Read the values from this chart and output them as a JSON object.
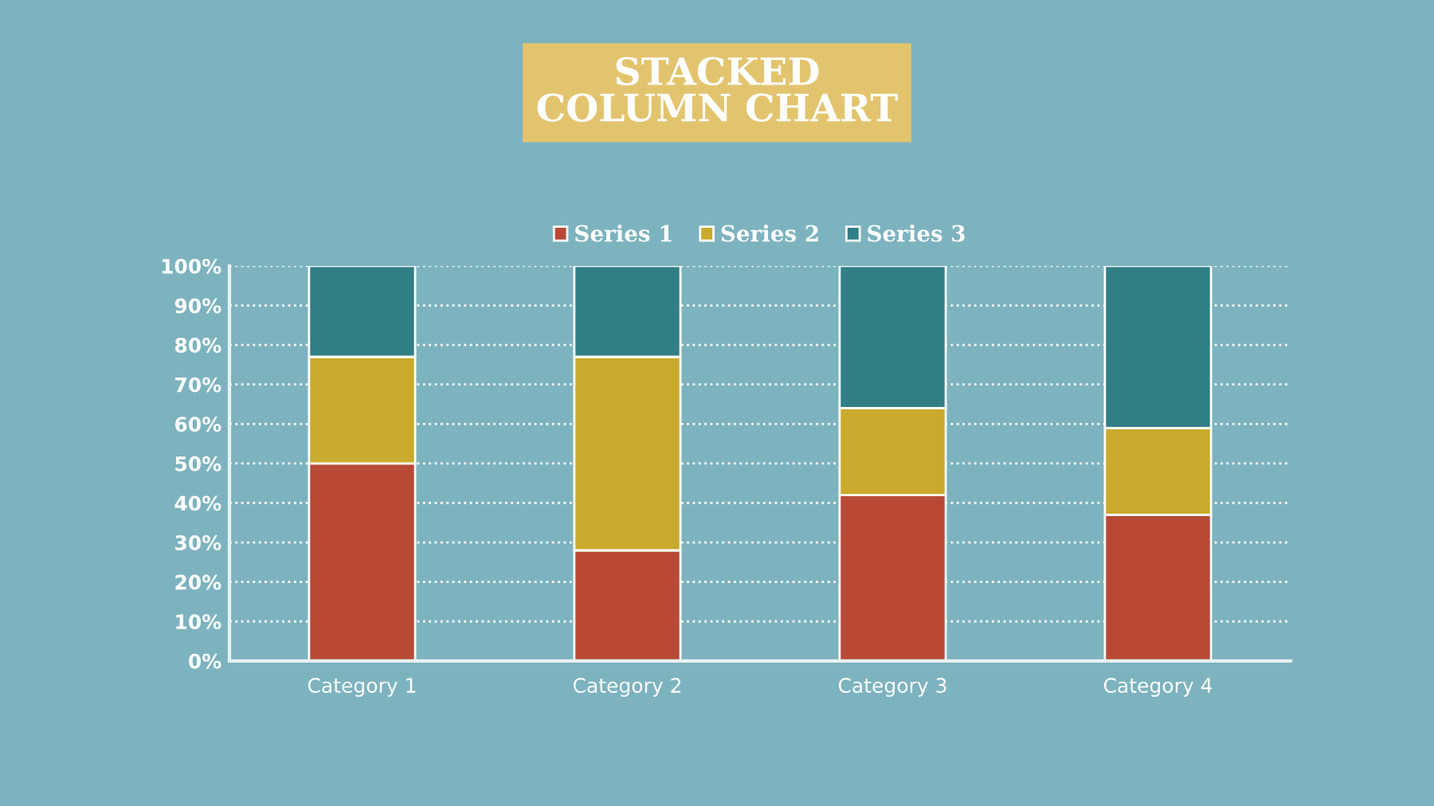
{
  "chart_data": {
    "type": "bar",
    "title": "STACKED\nCOLUMN CHART",
    "stacked": true,
    "categories": [
      "Category 1",
      "Category 2",
      "Category 3",
      "Category 4"
    ],
    "series": [
      {
        "name": "Series 1",
        "color": "#b84a35",
        "values": [
          50,
          28,
          42,
          37
        ]
      },
      {
        "name": "Series 2",
        "color": "#c9aa2c",
        "values": [
          27,
          49,
          22,
          22
        ]
      },
      {
        "name": "Series 3",
        "color": "#317f85",
        "values": [
          23,
          23,
          36,
          41
        ]
      }
    ],
    "ylim": [
      0,
      100
    ],
    "yticks": [
      {
        "value": 0,
        "label": "0%"
      },
      {
        "value": 10,
        "label": "10%"
      },
      {
        "value": 20,
        "label": "20%"
      },
      {
        "value": 30,
        "label": "30%"
      },
      {
        "value": 40,
        "label": "40%"
      },
      {
        "value": 50,
        "label": "50%"
      },
      {
        "value": 60,
        "label": "60%"
      },
      {
        "value": 70,
        "label": "70%"
      },
      {
        "value": 80,
        "label": "80%"
      },
      {
        "value": 90,
        "label": "90%"
      },
      {
        "value": 100,
        "label": "100%"
      }
    ],
    "grid": "y",
    "legend": "top"
  }
}
